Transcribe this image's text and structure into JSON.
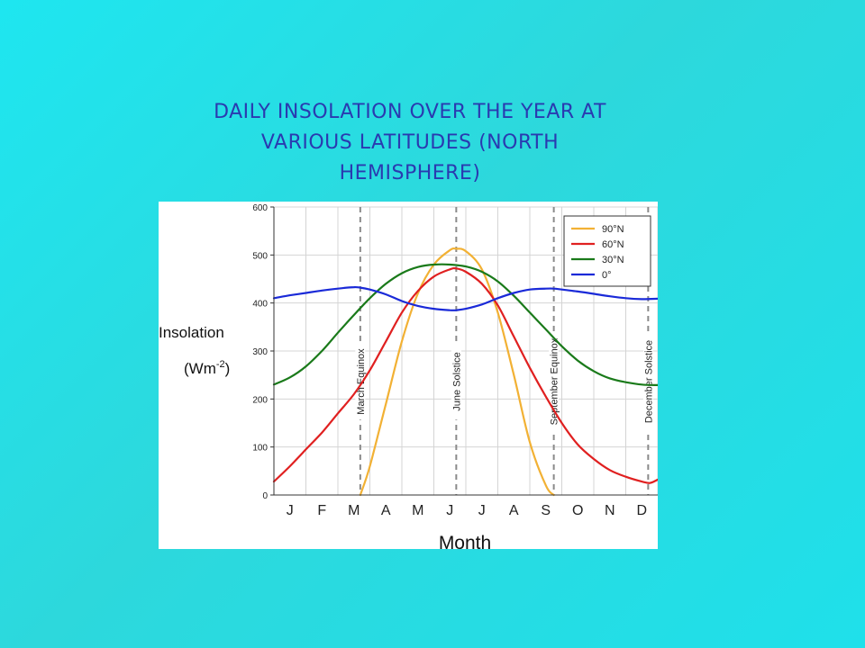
{
  "slide": {
    "title_lines": [
      "DAILY INSOLATION OVER THE YEAR AT",
      "VARIOUS LATITUDES (NORTH",
      "HEMISPHERE)"
    ]
  },
  "chart_data": {
    "type": "line",
    "xlabel": "Month",
    "ylabel": "Insolation",
    "ylabel_units": "(Wm-2)",
    "ylim": [
      0,
      600
    ],
    "yticks": [
      0,
      100,
      200,
      300,
      400,
      500,
      600
    ],
    "xlim": [
      0,
      12
    ],
    "categories": [
      "J",
      "F",
      "M",
      "A",
      "M",
      "J",
      "J",
      "A",
      "S",
      "O",
      "N",
      "D"
    ],
    "grid": true,
    "legend_position": "top-right",
    "markers": [
      {
        "label": "March Equinox",
        "x": 2.7
      },
      {
        "label": "June Solstice",
        "x": 5.7
      },
      {
        "label": "September Equinox",
        "x": 8.75
      },
      {
        "label": "December Solstice",
        "x": 11.7
      }
    ],
    "series": [
      {
        "name": "90°N",
        "color": "#f2b134",
        "x": [
          2.7,
          3.0,
          3.5,
          4.0,
          4.5,
          5.0,
          5.5,
          5.7,
          6.0,
          6.5,
          7.0,
          7.5,
          8.0,
          8.5,
          8.75
        ],
        "y": [
          0,
          60,
          190,
          320,
          420,
          480,
          510,
          513,
          508,
          470,
          380,
          250,
          110,
          20,
          0
        ]
      },
      {
        "name": "60°N",
        "color": "#e02020",
        "x": [
          0.0,
          0.5,
          1.0,
          1.5,
          2.0,
          2.5,
          3.0,
          3.5,
          4.0,
          4.5,
          5.0,
          5.5,
          5.7,
          6.0,
          6.5,
          7.0,
          7.5,
          8.0,
          8.5,
          9.0,
          9.5,
          10.0,
          10.5,
          11.0,
          11.5,
          11.75,
          12.0
        ],
        "y": [
          28,
          60,
          95,
          130,
          170,
          210,
          260,
          320,
          380,
          425,
          455,
          470,
          472,
          465,
          440,
          395,
          330,
          265,
          205,
          150,
          105,
          75,
          52,
          38,
          28,
          25,
          32
        ]
      },
      {
        "name": "30°N",
        "color": "#1a7a1a",
        "x": [
          0.0,
          0.5,
          1.0,
          1.5,
          2.0,
          2.5,
          3.0,
          3.5,
          4.0,
          4.5,
          5.0,
          5.5,
          6.0,
          6.5,
          7.0,
          7.5,
          8.0,
          8.5,
          9.0,
          9.5,
          10.0,
          10.5,
          11.0,
          11.5,
          12.0
        ],
        "y": [
          230,
          245,
          268,
          300,
          338,
          375,
          410,
          440,
          462,
          475,
          480,
          480,
          476,
          465,
          445,
          415,
          380,
          345,
          310,
          280,
          258,
          243,
          235,
          230,
          229
        ]
      },
      {
        "name": "0°",
        "color": "#1a2ad8",
        "x": [
          0.0,
          0.5,
          1.0,
          1.5,
          2.0,
          2.5,
          2.7,
          3.0,
          3.5,
          4.0,
          4.5,
          5.0,
          5.5,
          5.7,
          6.0,
          6.5,
          7.0,
          7.5,
          8.0,
          8.5,
          8.75,
          9.0,
          9.5,
          10.0,
          10.5,
          11.0,
          11.5,
          12.0
        ],
        "y": [
          410,
          416,
          421,
          426,
          430,
          433,
          432,
          428,
          418,
          404,
          394,
          388,
          385,
          385,
          388,
          397,
          410,
          421,
          428,
          430,
          430,
          428,
          424,
          419,
          414,
          410,
          408,
          409
        ]
      }
    ]
  }
}
